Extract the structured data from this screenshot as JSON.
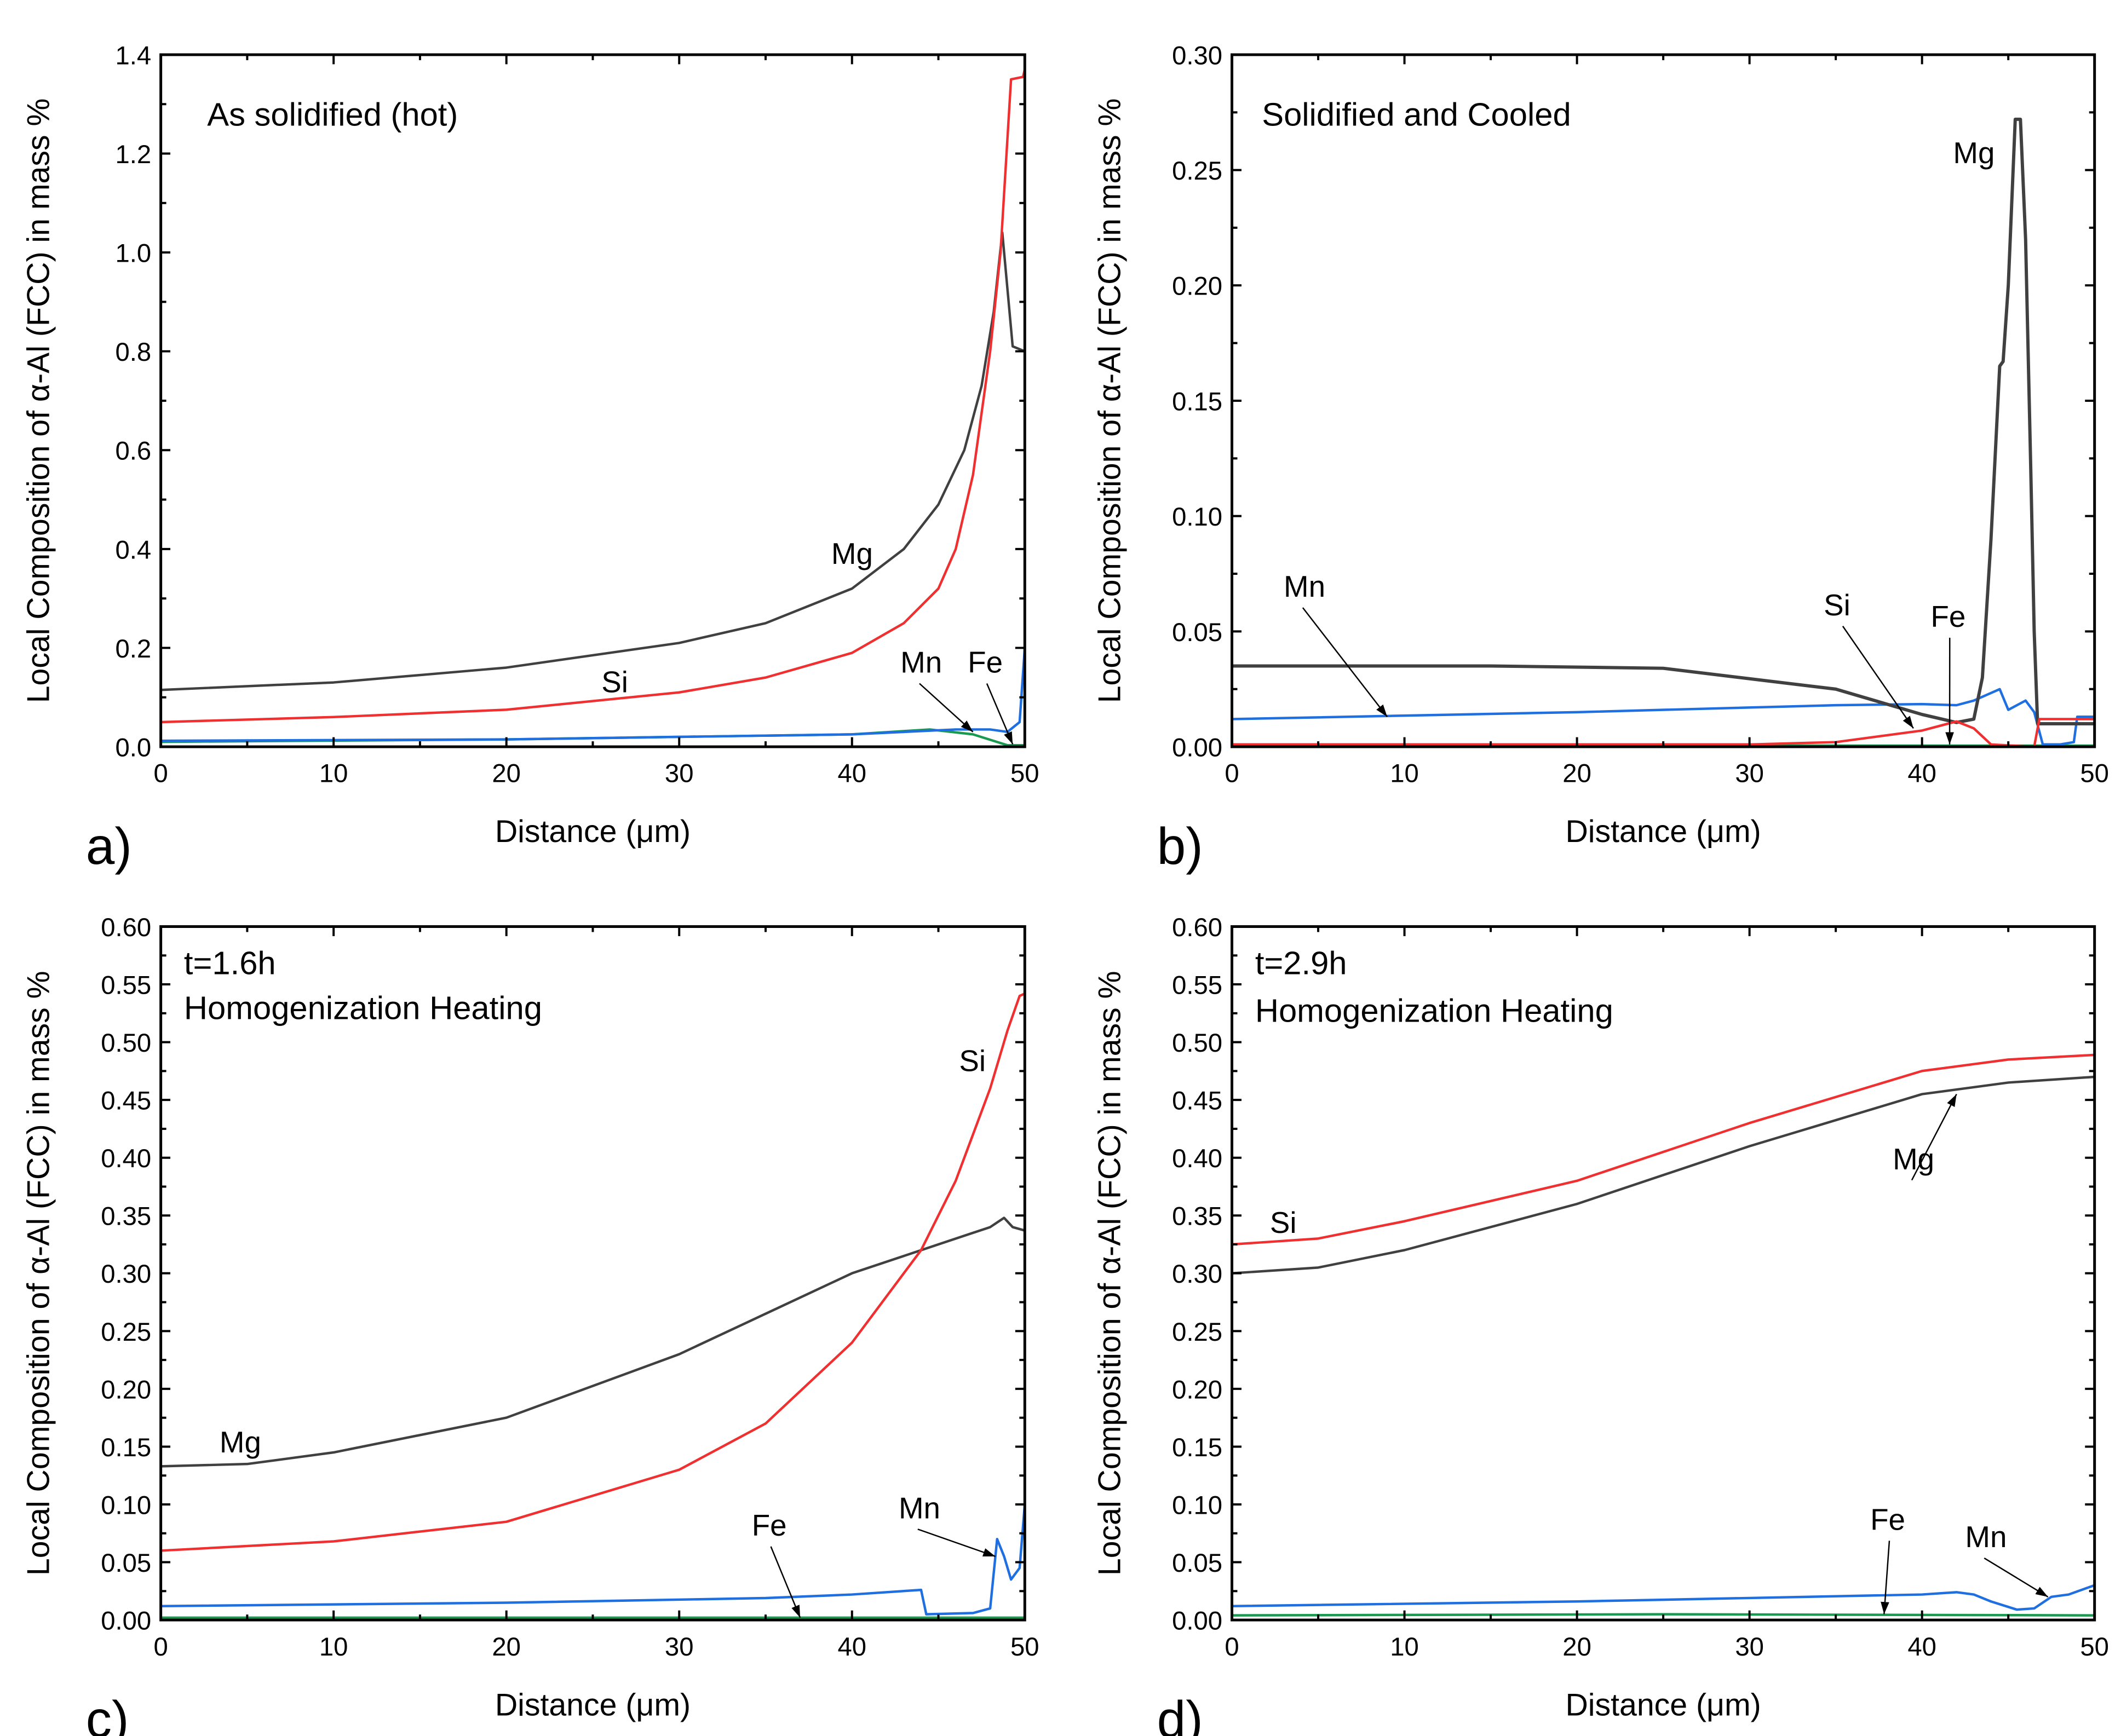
{
  "colors": {
    "Mg": "#404040",
    "Si": "#f03030",
    "Mn": "#1f6fe0",
    "Fe": "#1a9a50"
  },
  "chart_data": [
    {
      "type": "line",
      "panel_label": "a)",
      "title": "As solidified (hot)",
      "xlabel": "Distance (μm)",
      "ylabel": "Local Composition of α-Al (FCC) in mass %",
      "xlim": [
        0,
        50
      ],
      "ylim": [
        0,
        1.4
      ],
      "xticks": [
        0,
        10,
        20,
        30,
        40,
        50
      ],
      "yticks": [
        "0.0",
        "0.2",
        "0.4",
        "0.6",
        "0.8",
        "1.0",
        "1.2",
        "1.4"
      ],
      "ystep": 0.2,
      "yminor": 0.1,
      "series": [
        {
          "name": "Mg",
          "points": [
            [
              0,
              0.115
            ],
            [
              10,
              0.13
            ],
            [
              20,
              0.16
            ],
            [
              30,
              0.21
            ],
            [
              35,
              0.25
            ],
            [
              40,
              0.32
            ],
            [
              43,
              0.4
            ],
            [
              45,
              0.49
            ],
            [
              46.5,
              0.6
            ],
            [
              47.5,
              0.73
            ],
            [
              48.2,
              0.88
            ],
            [
              48.7,
              1.04
            ],
            [
              49.3,
              0.81
            ],
            [
              50,
              0.8
            ]
          ]
        },
        {
          "name": "Si",
          "points": [
            [
              0,
              0.05
            ],
            [
              10,
              0.06
            ],
            [
              20,
              0.075
            ],
            [
              30,
              0.11
            ],
            [
              35,
              0.14
            ],
            [
              40,
              0.19
            ],
            [
              43,
              0.25
            ],
            [
              45,
              0.32
            ],
            [
              46,
              0.4
            ],
            [
              47,
              0.55
            ],
            [
              48,
              0.8
            ],
            [
              48.6,
              1.0
            ],
            [
              49.2,
              1.35
            ],
            [
              49.9,
              1.355
            ],
            [
              50,
              1.37
            ]
          ]
        },
        {
          "name": "Mn",
          "points": [
            [
              0,
              0.012
            ],
            [
              20,
              0.015
            ],
            [
              40,
              0.025
            ],
            [
              46,
              0.035
            ],
            [
              48,
              0.035
            ],
            [
              49,
              0.03
            ],
            [
              49.7,
              0.05
            ],
            [
              50,
              0.2
            ]
          ]
        },
        {
          "name": "Fe",
          "points": [
            [
              0,
              0.01
            ],
            [
              20,
              0.015
            ],
            [
              40,
              0.025
            ],
            [
              44.5,
              0.035
            ],
            [
              47,
              0.025
            ],
            [
              49,
              0.003
            ],
            [
              50,
              0.003
            ]
          ]
        }
      ],
      "annotations": [
        {
          "text": "Mg",
          "x": 38.8,
          "y": 0.37
        },
        {
          "text": "Si",
          "x": 25.5,
          "y": 0.11
        },
        {
          "text": "Mn",
          "x": 42.8,
          "y": 0.15,
          "arrow_to": [
            47,
            0.03
          ]
        },
        {
          "text": "Fe",
          "x": 46.7,
          "y": 0.15,
          "arrow_to": [
            49.3,
            0.005
          ]
        }
      ]
    },
    {
      "type": "line",
      "panel_label": "b)",
      "title": "Solidified and Cooled",
      "xlabel": "Distance (μm)",
      "ylabel": "Local Composition of α-Al (FCC) in mass %",
      "xlim": [
        0,
        50
      ],
      "ylim": [
        0,
        0.3
      ],
      "xticks": [
        0,
        10,
        20,
        30,
        40,
        50
      ],
      "yticks": [
        "0.00",
        "0.05",
        "0.10",
        "0.15",
        "0.20",
        "0.25",
        "0.30"
      ],
      "ystep": 0.05,
      "yminor": 0.025,
      "series": [
        {
          "name": "Mg",
          "points": [
            [
              0,
              0.035
            ],
            [
              15,
              0.035
            ],
            [
              25,
              0.034
            ],
            [
              35,
              0.025
            ],
            [
              40,
              0.014
            ],
            [
              42,
              0.0105
            ],
            [
              43,
              0.012
            ],
            [
              43.5,
              0.03
            ],
            [
              44,
              0.09
            ],
            [
              44.5,
              0.165
            ],
            [
              44.7,
              0.167
            ],
            [
              45,
              0.2
            ],
            [
              45.4,
              0.272
            ],
            [
              45.7,
              0.272
            ],
            [
              46,
              0.22
            ],
            [
              46.3,
              0.12
            ],
            [
              46.5,
              0.05
            ],
            [
              46.7,
              0.01
            ],
            [
              50,
              0.01
            ]
          ]
        },
        {
          "name": "Si",
          "points": [
            [
              0,
              0.001
            ],
            [
              30,
              0.001
            ],
            [
              35,
              0.002
            ],
            [
              40,
              0.007
            ],
            [
              42,
              0.011
            ],
            [
              43,
              0.008
            ],
            [
              44,
              0.001
            ],
            [
              46.5,
              0.0
            ],
            [
              46.8,
              0.012
            ],
            [
              50,
              0.012
            ]
          ]
        },
        {
          "name": "Mn",
          "points": [
            [
              0,
              0.012
            ],
            [
              20,
              0.015
            ],
            [
              35,
              0.018
            ],
            [
              40,
              0.0185
            ],
            [
              42,
              0.018
            ],
            [
              43,
              0.02
            ],
            [
              44.5,
              0.025
            ],
            [
              45,
              0.016
            ],
            [
              46,
              0.02
            ],
            [
              46.5,
              0.015
            ],
            [
              47,
              0.001
            ],
            [
              48,
              0.001
            ],
            [
              48.8,
              0.002
            ],
            [
              49,
              0.013
            ],
            [
              50,
              0.013
            ],
            [
              50,
              0.02
            ]
          ]
        },
        {
          "name": "Fe",
          "points": [
            [
              0,
              0.0005
            ],
            [
              50,
              0.0005
            ]
          ]
        }
      ],
      "annotations": [
        {
          "text": "Mg",
          "x": 41.8,
          "y": 0.253
        },
        {
          "text": "Mn",
          "x": 3,
          "y": 0.065,
          "arrow_to": [
            9,
            0.013
          ]
        },
        {
          "text": "Si",
          "x": 34.3,
          "y": 0.057,
          "arrow_to": [
            39.5,
            0.008
          ]
        },
        {
          "text": "Fe",
          "x": 40.5,
          "y": 0.052,
          "arrow_to": [
            41.6,
            0.001
          ]
        }
      ]
    },
    {
      "type": "line",
      "panel_label": "c)",
      "title": "t=1.6h",
      "subtitle": "Homogenization Heating",
      "xlabel": "Distance (μm)",
      "ylabel": "Local Composition of α-Al (FCC) in mass %",
      "xlim": [
        0,
        50
      ],
      "ylim": [
        0,
        0.6
      ],
      "xticks": [
        0,
        10,
        20,
        30,
        40,
        50
      ],
      "yticks": [
        "0.00",
        "0.05",
        "0.10",
        "0.15",
        "0.20",
        "0.25",
        "0.30",
        "0.35",
        "0.40",
        "0.45",
        "0.50",
        "0.55",
        "0.60"
      ],
      "ystep": 0.05,
      "yminor": 0.025,
      "series": [
        {
          "name": "Mg",
          "points": [
            [
              0,
              0.133
            ],
            [
              5,
              0.135
            ],
            [
              10,
              0.145
            ],
            [
              20,
              0.175
            ],
            [
              30,
              0.23
            ],
            [
              35,
              0.265
            ],
            [
              40,
              0.3
            ],
            [
              45,
              0.325
            ],
            [
              48,
              0.34
            ],
            [
              48.8,
              0.348
            ],
            [
              49.3,
              0.34
            ],
            [
              50,
              0.337
            ]
          ]
        },
        {
          "name": "Si",
          "points": [
            [
              0,
              0.06
            ],
            [
              10,
              0.068
            ],
            [
              20,
              0.085
            ],
            [
              30,
              0.13
            ],
            [
              35,
              0.17
            ],
            [
              40,
              0.24
            ],
            [
              44,
              0.32
            ],
            [
              46,
              0.38
            ],
            [
              48,
              0.46
            ],
            [
              49,
              0.51
            ],
            [
              49.7,
              0.54
            ],
            [
              50,
              0.542
            ]
          ]
        },
        {
          "name": "Mn",
          "points": [
            [
              0,
              0.012
            ],
            [
              20,
              0.015
            ],
            [
              35,
              0.019
            ],
            [
              40,
              0.022
            ],
            [
              44,
              0.026
            ],
            [
              44.3,
              0.005
            ],
            [
              47,
              0.006
            ],
            [
              48,
              0.01
            ],
            [
              48.4,
              0.07
            ],
            [
              48.8,
              0.055
            ],
            [
              49.2,
              0.035
            ],
            [
              49.7,
              0.045
            ],
            [
              50,
              0.1
            ]
          ]
        },
        {
          "name": "Fe",
          "points": [
            [
              0,
              0.002
            ],
            [
              50,
              0.002
            ]
          ]
        }
      ],
      "annotations": [
        {
          "text": "Mg",
          "x": 3.4,
          "y": 0.145
        },
        {
          "text": "Si",
          "x": 46.2,
          "y": 0.475
        },
        {
          "text": "Fe",
          "x": 34.2,
          "y": 0.073,
          "arrow_to": [
            37,
            0.002
          ]
        },
        {
          "text": "Mn",
          "x": 42.7,
          "y": 0.088,
          "arrow_to": [
            48.3,
            0.055
          ]
        }
      ]
    },
    {
      "type": "line",
      "panel_label": "d)",
      "title": "t=2.9h",
      "subtitle": "Homogenization Heating",
      "xlabel": "Distance (μm)",
      "ylabel": "Local Composition of α-Al (FCC) in mass %",
      "xlim": [
        0,
        50
      ],
      "ylim": [
        0,
        0.6
      ],
      "xticks": [
        0,
        10,
        20,
        30,
        40,
        50
      ],
      "yticks": [
        "0.00",
        "0.05",
        "0.10",
        "0.15",
        "0.20",
        "0.25",
        "0.30",
        "0.35",
        "0.40",
        "0.45",
        "0.50",
        "0.55",
        "0.60"
      ],
      "ystep": 0.05,
      "yminor": 0.025,
      "series": [
        {
          "name": "Si",
          "points": [
            [
              0,
              0.325
            ],
            [
              5,
              0.33
            ],
            [
              10,
              0.345
            ],
            [
              20,
              0.38
            ],
            [
              30,
              0.43
            ],
            [
              40,
              0.475
            ],
            [
              45,
              0.485
            ],
            [
              50,
              0.489
            ]
          ]
        },
        {
          "name": "Mg",
          "points": [
            [
              0,
              0.3
            ],
            [
              5,
              0.305
            ],
            [
              10,
              0.32
            ],
            [
              20,
              0.36
            ],
            [
              30,
              0.41
            ],
            [
              40,
              0.455
            ],
            [
              45,
              0.465
            ],
            [
              50,
              0.47
            ]
          ]
        },
        {
          "name": "Mn",
          "points": [
            [
              0,
              0.012
            ],
            [
              20,
              0.016
            ],
            [
              40,
              0.022
            ],
            [
              42,
              0.024
            ],
            [
              43,
              0.022
            ],
            [
              44,
              0.016
            ],
            [
              45.5,
              0.009
            ],
            [
              46.5,
              0.01
            ],
            [
              47.5,
              0.02
            ],
            [
              48.5,
              0.022
            ],
            [
              50,
              0.03
            ]
          ]
        },
        {
          "name": "Fe",
          "points": [
            [
              0,
              0.004
            ],
            [
              25,
              0.005
            ],
            [
              50,
              0.004
            ]
          ]
        }
      ],
      "annotations": [
        {
          "text": "Si",
          "x": 2.2,
          "y": 0.335
        },
        {
          "text": "Mg",
          "x": 38.3,
          "y": 0.39,
          "arrow_to": [
            42,
            0.455
          ]
        },
        {
          "text": "Fe",
          "x": 37,
          "y": 0.078,
          "arrow_to": [
            37.8,
            0.005
          ]
        },
        {
          "text": "Mn",
          "x": 42.5,
          "y": 0.063,
          "arrow_to": [
            47.3,
            0.02
          ]
        }
      ]
    }
  ]
}
